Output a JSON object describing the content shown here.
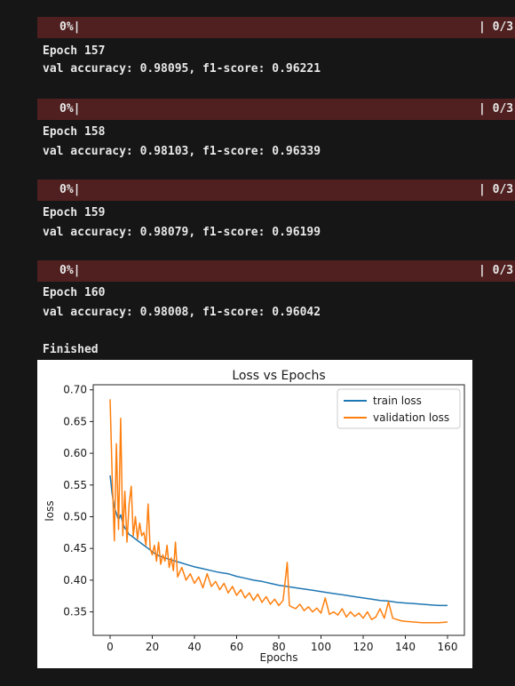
{
  "output": {
    "blocks": [
      {
        "progress_pct": "0%|",
        "progress_count": "| 0/3",
        "epoch": "Epoch 157",
        "metrics": "val accuracy: 0.98095, f1-score: 0.96221"
      },
      {
        "progress_pct": "0%|",
        "progress_count": "| 0/3",
        "epoch": "Epoch 158",
        "metrics": "val accuracy: 0.98103, f1-score: 0.96339"
      },
      {
        "progress_pct": "0%|",
        "progress_count": "| 0/3",
        "epoch": "Epoch 159",
        "metrics": "val accuracy: 0.98079, f1-score: 0.96199"
      },
      {
        "progress_pct": "0%|",
        "progress_count": "| 0/3",
        "epoch": "Epoch 160",
        "metrics": "val accuracy: 0.98008, f1-score: 0.96042"
      }
    ],
    "finished": "Finished"
  },
  "colors": {
    "background": "#161616",
    "progress_bar_bg": "#502020",
    "text": "#e8e8e8",
    "train_series": "#1f77b4",
    "validation_series": "#ff7f0e"
  },
  "chart_data": {
    "type": "line",
    "title": "Loss vs Epochs",
    "xlabel": "Epochs",
    "ylabel": "loss",
    "xlim": [
      -8,
      168
    ],
    "ylim": [
      0.313,
      0.708
    ],
    "xticks": [
      0,
      20,
      40,
      60,
      80,
      100,
      120,
      140,
      160
    ],
    "yticks": [
      0.35,
      0.4,
      0.45,
      0.5,
      0.55,
      0.6,
      0.65,
      0.7
    ],
    "ytick_labels": [
      "0.35",
      "0.40",
      "0.45",
      "0.50",
      "0.55",
      "0.60",
      "0.65",
      "0.70"
    ],
    "grid": false,
    "legend_position": "top-right",
    "series": [
      {
        "name": "train loss",
        "color": "#1f77b4",
        "points": [
          [
            0,
            0.565
          ],
          [
            1,
            0.535
          ],
          [
            2,
            0.515
          ],
          [
            3,
            0.505
          ],
          [
            4,
            0.495
          ],
          [
            5,
            0.503
          ],
          [
            6,
            0.49
          ],
          [
            7,
            0.482
          ],
          [
            8,
            0.478
          ],
          [
            9,
            0.472
          ],
          [
            10,
            0.47
          ],
          [
            12,
            0.465
          ],
          [
            14,
            0.46
          ],
          [
            16,
            0.455
          ],
          [
            18,
            0.45
          ],
          [
            20,
            0.445
          ],
          [
            22,
            0.44
          ],
          [
            25,
            0.436
          ],
          [
            28,
            0.433
          ],
          [
            31,
            0.43
          ],
          [
            34,
            0.427
          ],
          [
            37,
            0.424
          ],
          [
            40,
            0.421
          ],
          [
            44,
            0.418
          ],
          [
            48,
            0.415
          ],
          [
            52,
            0.412
          ],
          [
            56,
            0.41
          ],
          [
            60,
            0.406
          ],
          [
            64,
            0.403
          ],
          [
            68,
            0.4
          ],
          [
            72,
            0.398
          ],
          [
            76,
            0.395
          ],
          [
            80,
            0.392
          ],
          [
            84,
            0.39
          ],
          [
            88,
            0.388
          ],
          [
            92,
            0.386
          ],
          [
            96,
            0.384
          ],
          [
            100,
            0.382
          ],
          [
            104,
            0.38
          ],
          [
            108,
            0.378
          ],
          [
            112,
            0.376
          ],
          [
            116,
            0.374
          ],
          [
            120,
            0.372
          ],
          [
            124,
            0.37
          ],
          [
            128,
            0.368
          ],
          [
            132,
            0.367
          ],
          [
            136,
            0.365
          ],
          [
            140,
            0.364
          ],
          [
            144,
            0.363
          ],
          [
            148,
            0.362
          ],
          [
            152,
            0.361
          ],
          [
            156,
            0.36
          ],
          [
            160,
            0.36
          ]
        ]
      },
      {
        "name": "validation loss",
        "color": "#ff7f0e",
        "points": [
          [
            0,
            0.685
          ],
          [
            1,
            0.56
          ],
          [
            2,
            0.462
          ],
          [
            3,
            0.615
          ],
          [
            4,
            0.48
          ],
          [
            5,
            0.655
          ],
          [
            6,
            0.47
          ],
          [
            7,
            0.54
          ],
          [
            8,
            0.46
          ],
          [
            9,
            0.52
          ],
          [
            10,
            0.548
          ],
          [
            11,
            0.47
          ],
          [
            12,
            0.5
          ],
          [
            13,
            0.465
          ],
          [
            14,
            0.49
          ],
          [
            15,
            0.47
          ],
          [
            16,
            0.475
          ],
          [
            17,
            0.455
          ],
          [
            18,
            0.52
          ],
          [
            19,
            0.45
          ],
          [
            20,
            0.44
          ],
          [
            21,
            0.455
          ],
          [
            22,
            0.43
          ],
          [
            23,
            0.46
          ],
          [
            24,
            0.425
          ],
          [
            25,
            0.44
          ],
          [
            26,
            0.43
          ],
          [
            27,
            0.455
          ],
          [
            28,
            0.42
          ],
          [
            29,
            0.435
          ],
          [
            30,
            0.415
          ],
          [
            31,
            0.46
          ],
          [
            32,
            0.405
          ],
          [
            34,
            0.42
          ],
          [
            36,
            0.4
          ],
          [
            38,
            0.41
          ],
          [
            40,
            0.395
          ],
          [
            42,
            0.405
          ],
          [
            44,
            0.388
          ],
          [
            46,
            0.41
          ],
          [
            48,
            0.39
          ],
          [
            50,
            0.398
          ],
          [
            52,
            0.385
          ],
          [
            54,
            0.395
          ],
          [
            56,
            0.38
          ],
          [
            58,
            0.39
          ],
          [
            60,
            0.376
          ],
          [
            62,
            0.385
          ],
          [
            64,
            0.372
          ],
          [
            66,
            0.38
          ],
          [
            68,
            0.368
          ],
          [
            70,
            0.378
          ],
          [
            72,
            0.365
          ],
          [
            74,
            0.374
          ],
          [
            76,
            0.362
          ],
          [
            78,
            0.37
          ],
          [
            80,
            0.36
          ],
          [
            82,
            0.368
          ],
          [
            84,
            0.428
          ],
          [
            85,
            0.36
          ],
          [
            86,
            0.358
          ],
          [
            88,
            0.355
          ],
          [
            90,
            0.362
          ],
          [
            92,
            0.352
          ],
          [
            94,
            0.358
          ],
          [
            96,
            0.35
          ],
          [
            98,
            0.356
          ],
          [
            100,
            0.348
          ],
          [
            102,
            0.372
          ],
          [
            104,
            0.346
          ],
          [
            106,
            0.35
          ],
          [
            108,
            0.345
          ],
          [
            110,
            0.355
          ],
          [
            112,
            0.342
          ],
          [
            114,
            0.35
          ],
          [
            116,
            0.343
          ],
          [
            118,
            0.348
          ],
          [
            120,
            0.34
          ],
          [
            122,
            0.35
          ],
          [
            124,
            0.338
          ],
          [
            126,
            0.342
          ],
          [
            128,
            0.355
          ],
          [
            130,
            0.34
          ],
          [
            132,
            0.366
          ],
          [
            134,
            0.34
          ],
          [
            136,
            0.338
          ],
          [
            138,
            0.336
          ],
          [
            140,
            0.335
          ],
          [
            144,
            0.334
          ],
          [
            148,
            0.333
          ],
          [
            152,
            0.333
          ],
          [
            156,
            0.333
          ],
          [
            160,
            0.334
          ]
        ]
      }
    ]
  }
}
